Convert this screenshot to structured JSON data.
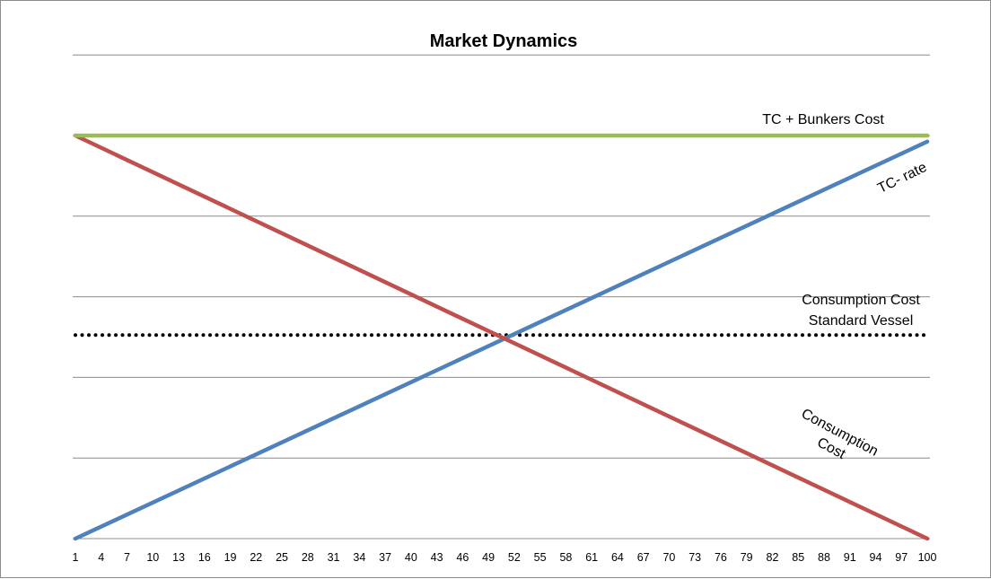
{
  "chart_data": {
    "type": "line",
    "title": "Market Dynamics",
    "x": {
      "start": 1,
      "end": 100,
      "tick_labels": [
        "1",
        "4",
        "7",
        "10",
        "13",
        "16",
        "19",
        "22",
        "25",
        "28",
        "31",
        "34",
        "37",
        "40",
        "43",
        "46",
        "49",
        "52",
        "55",
        "58",
        "61",
        "64",
        "67",
        "70",
        "73",
        "76",
        "79",
        "82",
        "85",
        "88",
        "91",
        "94",
        "97",
        "100"
      ]
    },
    "ylim": [
      0,
      100
    ],
    "grid": "horizontal",
    "gridlines": [
      0,
      20,
      40,
      60,
      80,
      100,
      120
    ],
    "series": [
      {
        "id": "tc_bunkers",
        "color": "#9bbb59",
        "style": "solid",
        "start": 100,
        "end": 100
      },
      {
        "id": "consumption_cost",
        "color": "#c0504d",
        "style": "solid",
        "start": 100,
        "end": 0
      },
      {
        "id": "tc_rate",
        "color": "#4f81bd",
        "style": "solid",
        "start": 0,
        "end": 98.5
      },
      {
        "id": "standard_vessel",
        "color": "#000000",
        "style": "dotted",
        "start": 50.5,
        "end": 50.5
      }
    ],
    "annotations": {
      "tc_bunkers": "TC + Bunkers Cost",
      "tc_rate": "TC- rate",
      "consumption_std_line1": "Consumption Cost",
      "consumption_std_line2": "Standard Vessel",
      "consumption_line1": "Consumption",
      "consumption_line2": "Cost"
    }
  }
}
